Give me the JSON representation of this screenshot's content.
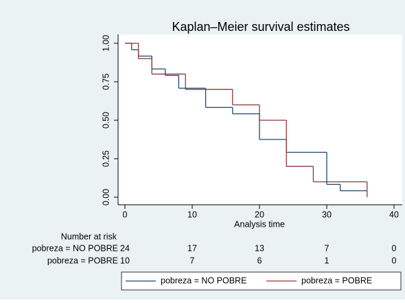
{
  "chart_data": {
    "type": "step",
    "title": "Kaplan–Meier survival estimates",
    "x_label": "Analysis time",
    "xlim": [
      0,
      40
    ],
    "xticks": [
      0,
      10,
      20,
      30,
      40
    ],
    "ylim": [
      0,
      1
    ],
    "yticks": [
      {
        "value": 0,
        "label": "0.00"
      },
      {
        "value": 0.25,
        "label": "0.25"
      },
      {
        "value": 0.5,
        "label": "0.50"
      },
      {
        "value": 0.75,
        "label": "0.75"
      },
      {
        "value": 1,
        "label": "1.00"
      }
    ],
    "series": [
      {
        "name": "pobreza = NO POBRE",
        "color": "#1a476f",
        "x": [
          0,
          1,
          2,
          4,
          6,
          8,
          12,
          16,
          20,
          24,
          30,
          32,
          36
        ],
        "values": [
          1,
          0.958,
          0.917,
          0.833,
          0.792,
          0.708,
          0.583,
          0.542,
          0.375,
          0.292,
          0.083,
          0.042,
          0.042
        ]
      },
      {
        "name": "pobreza = POBRE",
        "color": "#90353b",
        "x": [
          0,
          2,
          4,
          9,
          16,
          20,
          24,
          28,
          36
        ],
        "values": [
          1,
          0.9,
          0.8,
          0.7,
          0.6,
          0.5,
          0.2,
          0.1,
          0
        ]
      }
    ],
    "risk_table": {
      "title": "Number at risk",
      "times": [
        0,
        10,
        20,
        30,
        40
      ],
      "rows": [
        {
          "label": "pobreza = NO POBRE",
          "values": [
            24,
            17,
            13,
            7,
            0
          ]
        },
        {
          "label": "pobreza = POBRE",
          "values": [
            10,
            7,
            6,
            1,
            0
          ]
        }
      ]
    }
  }
}
